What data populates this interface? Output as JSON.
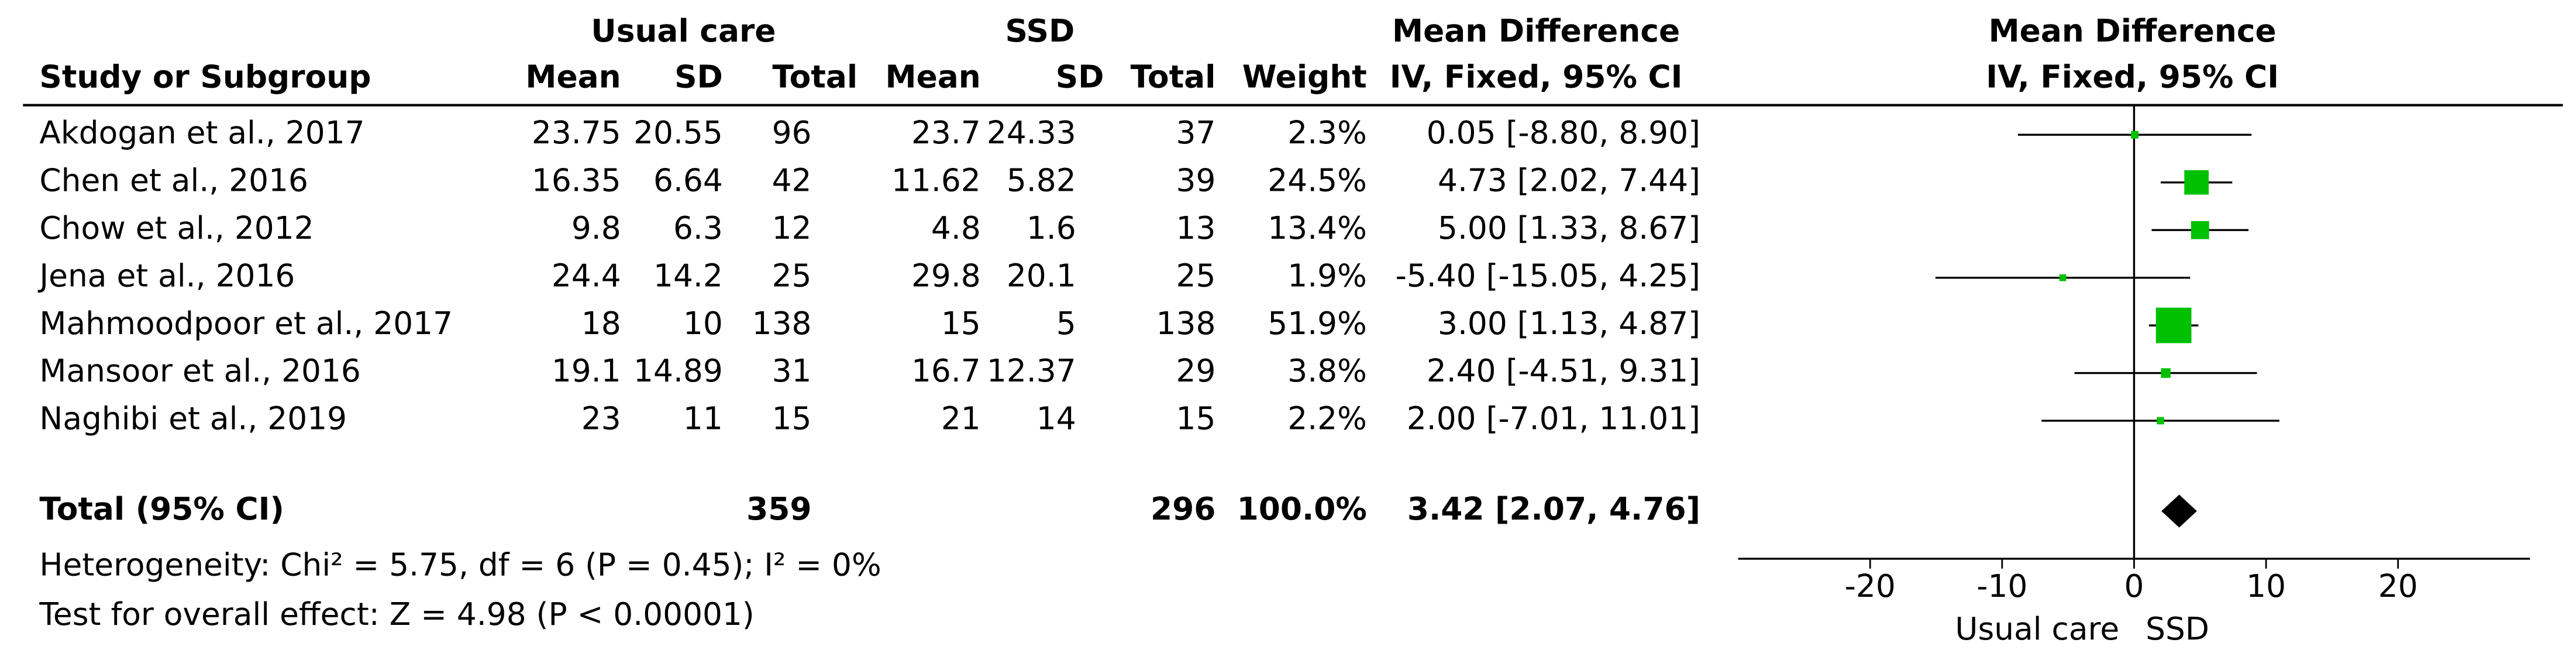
{
  "chart_data": {
    "type": "forest",
    "group_headers": {
      "group1": "Usual care",
      "group2": "SSD",
      "effect": "Mean Difference",
      "effect_method": "IV, Fixed, 95% CI",
      "plot": "Mean Difference",
      "plot_method": "IV, Fixed, 95% CI"
    },
    "columns": {
      "study": "Study or Subgroup",
      "mean1": "Mean",
      "sd1": "SD",
      "total1": "Total",
      "mean2": "Mean",
      "sd2": "SD",
      "total2": "Total",
      "weight": "Weight"
    },
    "studies": [
      "Akdogan et al., 2017",
      "Chen et al., 2016",
      "Chow et al., 2012",
      "Jena et al., 2016",
      "Mahmoodpoor et al., 2017",
      "Mansoor et al., 2016",
      "Naghibi et al., 2019"
    ],
    "mean1": [
      23.75,
      16.35,
      9.8,
      24.4,
      18,
      19.1,
      23
    ],
    "sd1": [
      20.55,
      6.64,
      6.3,
      14.2,
      10,
      14.89,
      11
    ],
    "total1": [
      96,
      42,
      12,
      25,
      138,
      31,
      15
    ],
    "mean2": [
      23.7,
      11.62,
      4.8,
      29.8,
      15,
      16.7,
      21
    ],
    "sd2": [
      24.33,
      5.82,
      1.6,
      20.1,
      5,
      12.37,
      14
    ],
    "total2": [
      37,
      39,
      13,
      25,
      138,
      29,
      15
    ],
    "weights": [
      2.3,
      24.5,
      13.4,
      1.9,
      51.9,
      3.8,
      2.2
    ],
    "weight_labels": [
      "2.3%",
      "24.5%",
      "13.4%",
      "1.9%",
      "51.9%",
      "3.8%",
      "2.2%"
    ],
    "md": [
      0.05,
      4.73,
      5.0,
      -5.4,
      3.0,
      2.4,
      2.0
    ],
    "ci_lower": [
      -8.8,
      2.02,
      1.33,
      -15.05,
      1.13,
      -4.51,
      -7.01
    ],
    "ci_upper": [
      8.9,
      7.44,
      8.67,
      4.25,
      4.87,
      9.31,
      11.01
    ],
    "ci_labels": [
      "0.05 [-8.80, 8.90]",
      "4.73 [2.02, 7.44]",
      "5.00 [1.33, 8.67]",
      "-5.40 [-15.05, 4.25]",
      "3.00 [1.13, 4.87]",
      "2.40 [-4.51, 9.31]",
      "2.00 [-7.01, 11.01]"
    ],
    "total": {
      "label": "Total (95% CI)",
      "total1": 359,
      "total2": 296,
      "weight": 100.0,
      "weight_label": "100.0%",
      "md": 3.42,
      "ci_lower": 2.07,
      "ci_upper": 4.76,
      "ci_label": "3.42 [2.07, 4.76]"
    },
    "heterogeneity": "Heterogeneity: Chi² = 5.75, df = 6 (P = 0.45); I² = 0%",
    "overall_effect": "Test for overall effect: Z = 4.98 (P < 0.00001)",
    "xlim": [
      -30,
      30
    ],
    "xticks": [
      -20,
      -10,
      0,
      10,
      20
    ],
    "favours_left": "Usual care",
    "favours_right": "SSD",
    "color": "#00c000"
  }
}
